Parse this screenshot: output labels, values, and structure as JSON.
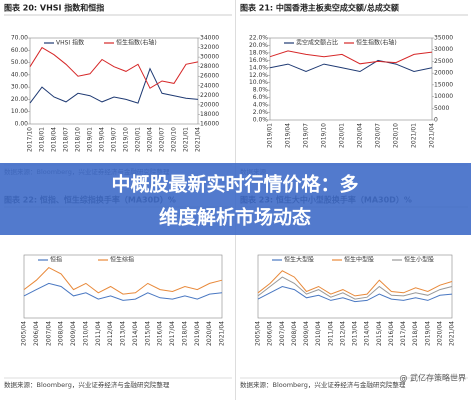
{
  "chart_data": [
    {
      "type": "line",
      "title": "图表 20: VHSI 指数和恒指",
      "source": "数据来源：Bloomberg，兴业证券经济与金融研究院整理",
      "categories": [
        "2017/10",
        "2018/01",
        "2018/04",
        "2018/07",
        "2018/10",
        "2019/01",
        "2019/04",
        "2019/07",
        "2019/10",
        "2020/01",
        "2020/04",
        "2020/07",
        "2020/10",
        "2021/01",
        "2021/04"
      ],
      "series": [
        {
          "name": "VHSI 指数",
          "color": "#1f3a73",
          "values": [
            17,
            30,
            22,
            18,
            25,
            23,
            18,
            22,
            20,
            17,
            45,
            25,
            23,
            21,
            20
          ]
        },
        {
          "name": "恒生指数(右轴)",
          "color": "#d62728",
          "axis": "y2",
          "values": [
            28000,
            32000,
            30500,
            28500,
            26000,
            26500,
            29500,
            28000,
            27000,
            28500,
            23500,
            25000,
            24500,
            28500,
            29000
          ]
        }
      ],
      "ylim": [
        0,
        70
      ],
      "yticks": [
        {
          "value": 0,
          "label": "0.00"
        },
        {
          "value": 10,
          "label": "10.00"
        },
        {
          "value": 20,
          "label": "20.00"
        },
        {
          "value": 30,
          "label": "30.00"
        },
        {
          "value": 40,
          "label": "40.00"
        },
        {
          "value": 50,
          "label": "50.00"
        },
        {
          "value": 60,
          "label": "60.00"
        },
        {
          "value": 70,
          "label": "70.00"
        }
      ],
      "y2lim": [
        16000,
        34000
      ],
      "y2ticks": [
        16000,
        18000,
        20000,
        22000,
        24000,
        26000,
        28000,
        30000,
        32000,
        34000
      ]
    },
    {
      "type": "line",
      "title": "图表 21: 中国香港主板卖空成交额/总成交额",
      "source": "数据来源",
      "categories": [
        "2019/01",
        "2019/04",
        "2019/07",
        "2019/10",
        "2020/01",
        "2020/04",
        "2020/07",
        "2020/10",
        "2021/01",
        "2021/04"
      ],
      "series": [
        {
          "name": "卖空成交额占比",
          "color": "#1f3a73",
          "values": [
            14,
            15,
            13,
            15,
            14,
            13,
            16,
            15,
            13,
            14
          ]
        },
        {
          "name": "恒生指数(右轴)",
          "color": "#d62728",
          "axis": "y2",
          "values": [
            27000,
            29500,
            28000,
            27000,
            28000,
            24000,
            25000,
            24500,
            28000,
            29000
          ]
        }
      ],
      "ylim": [
        0,
        22
      ],
      "yticks": [
        {
          "value": 0,
          "label": "0.0%"
        },
        {
          "value": 2,
          "label": "2.0%"
        },
        {
          "value": 4,
          "label": "4.0%"
        },
        {
          "value": 6,
          "label": "6.0%"
        },
        {
          "value": 8,
          "label": "8.0%"
        },
        {
          "value": 10,
          "label": "10.0%"
        },
        {
          "value": 12,
          "label": "12.0%"
        },
        {
          "value": 14,
          "label": "14.0%"
        },
        {
          "value": 16,
          "label": "16.0%"
        },
        {
          "value": 18,
          "label": "18.0%"
        },
        {
          "value": 20,
          "label": "20.0%"
        },
        {
          "value": 22,
          "label": "22.0%"
        }
      ],
      "y2lim": [
        0,
        35000
      ],
      "y2ticks": [
        0,
        5000,
        10000,
        15000,
        20000,
        25000,
        30000,
        35000
      ]
    },
    {
      "type": "line",
      "title": "图表 22: 恒指、恒生综指换手率（MA30D）%",
      "source": "数据来源：Bloomberg，兴业证券经济与金融研究院整理",
      "categories": [
        "2005/04",
        "2006/04",
        "2007/04",
        "2008/04",
        "2009/04",
        "2010/04",
        "2011/04",
        "2012/04",
        "2013/04",
        "2014/04",
        "2015/04",
        "2016/04",
        "2017/04",
        "2018/04",
        "2019/04",
        "2020/04",
        "2021/04"
      ],
      "series": [
        {
          "name": "恒指",
          "color": "#4a78c2",
          "values": [
            35,
            45,
            55,
            50,
            35,
            40,
            30,
            35,
            28,
            30,
            40,
            32,
            30,
            35,
            30,
            38,
            40
          ]
        },
        {
          "name": "恒生综指",
          "color": "#e8893a",
          "values": [
            45,
            60,
            80,
            70,
            45,
            55,
            40,
            50,
            38,
            40,
            55,
            45,
            42,
            50,
            45,
            55,
            60
          ]
        }
      ],
      "ylim": [
        0,
        100
      ]
    },
    {
      "type": "line",
      "title": "图表 23: 恒生大中小型股换手率（MA30D）%",
      "source": "数据来源：Bloomberg，兴业证券经济与金融研究院整理",
      "categories": [
        "2005/04",
        "2006/04",
        "2007/04",
        "2008/04",
        "2009/04",
        "2010/04",
        "2011/04",
        "2012/04",
        "2013/04",
        "2014/04",
        "2015/04",
        "2016/04",
        "2017/04",
        "2018/04",
        "2019/04",
        "2020/04",
        "2021/04"
      ],
      "series": [
        {
          "name": "恒生大型股",
          "color": "#4a78c2",
          "values": [
            30,
            40,
            50,
            45,
            32,
            36,
            28,
            32,
            26,
            28,
            38,
            30,
            28,
            32,
            28,
            36,
            38
          ]
        },
        {
          "name": "恒生中型股",
          "color": "#e8893a",
          "values": [
            40,
            55,
            75,
            65,
            42,
            50,
            38,
            45,
            35,
            38,
            60,
            42,
            40,
            48,
            42,
            52,
            58
          ]
        },
        {
          "name": "恒生小型股",
          "color": "#999999",
          "values": [
            35,
            50,
            65,
            55,
            38,
            45,
            33,
            40,
            30,
            33,
            50,
            36,
            35,
            40,
            36,
            45,
            50
          ]
        }
      ],
      "ylim": [
        0,
        100
      ]
    }
  ],
  "banner": [
    "中概股最新实时行情价格：多",
    "维度解析市场动态"
  ],
  "watermark": "@ 武亿存策略世界"
}
